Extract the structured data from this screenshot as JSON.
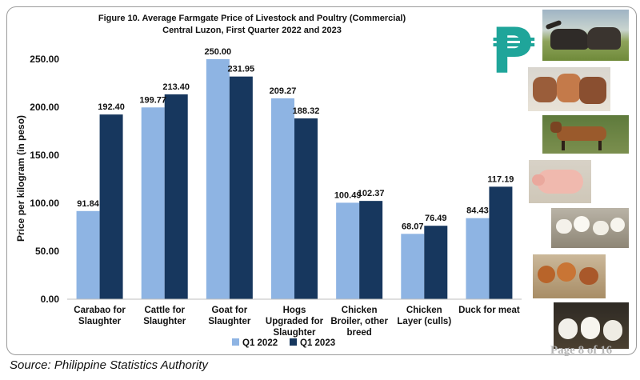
{
  "chart_data": {
    "type": "bar",
    "title": "Figure 10. Average Farmgate Price of Livestock and Poultry (Commercial)",
    "subtitle": "Central Luzon, First Quarter 2022 and 2023",
    "ylabel": "Price per kilogram (in peso)",
    "xlabel": "",
    "ylim": [
      0,
      250
    ],
    "yticks": [
      "0.00",
      "50.00",
      "100.00",
      "150.00",
      "200.00",
      "250.00"
    ],
    "grid": false,
    "legend_position": "bottom",
    "categories": [
      [
        "Carabao for",
        "Slaughter"
      ],
      [
        "Cattle for",
        "Slaughter"
      ],
      [
        "Goat for",
        "Slaughter"
      ],
      [
        "Hogs",
        "Upgraded for",
        "Slaughter"
      ],
      [
        "Chicken",
        "Broiler, other",
        "breed"
      ],
      [
        "Chicken",
        "Layer (culls)"
      ],
      [
        "Duck for meat"
      ]
    ],
    "series": [
      {
        "name": "Q1 2022",
        "color": "#8eb4e3",
        "values": [
          91.84,
          199.77,
          250.0,
          209.27,
          100.49,
          68.07,
          84.43
        ],
        "labels": [
          "91.84",
          "199.77",
          "250.00",
          "209.27",
          "100.49",
          "68.07",
          "84.43"
        ]
      },
      {
        "name": "Q1 2023",
        "color": "#17375e",
        "values": [
          192.4,
          213.4,
          231.95,
          188.32,
          102.37,
          76.49,
          117.19
        ],
        "labels": [
          "192.40",
          "213.40",
          "231.95",
          "188.32",
          "102.37",
          "76.49",
          "117.19"
        ]
      }
    ]
  },
  "source": "Source: Philippine Statistics Authority",
  "footer": "Page 8 of 16",
  "icons": {
    "peso_symbol": "₱",
    "photos": [
      "carabao-photo",
      "cattle-photo",
      "goat-photo",
      "hog-photo",
      "chicken-broiler-photo",
      "chicken-layer-photo",
      "duck-photo"
    ]
  }
}
